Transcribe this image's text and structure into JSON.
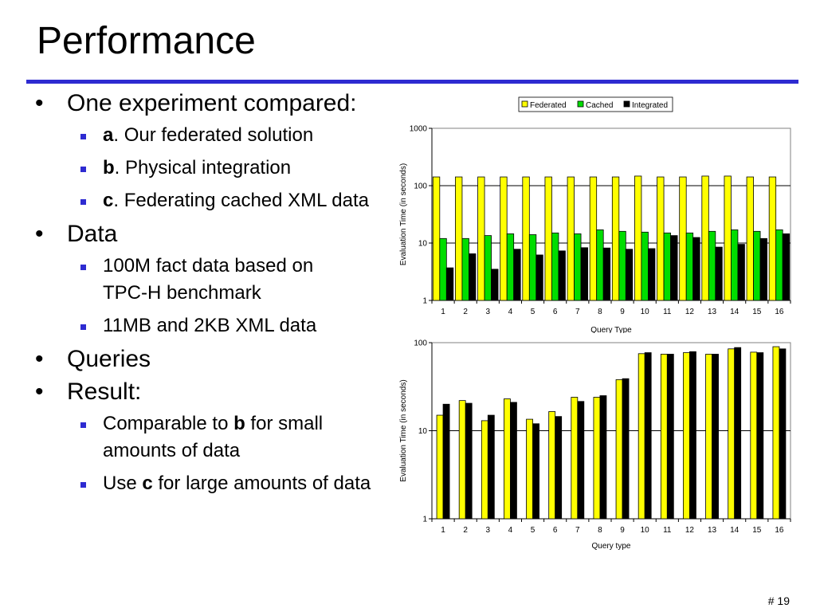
{
  "slide": {
    "title": "Performance",
    "number": "# 19"
  },
  "bullets": {
    "experiment": "One experiment compared:",
    "a_label": "a",
    "a_text": ". Our federated solution",
    "b_label": "b",
    "b_text": ". Physical integration",
    "c_label": "c",
    "c_text": ". Federating cached XML data",
    "data": "Data",
    "data_1": "100M fact data based on TPC-H benchmark",
    "data_2": "11MB and 2KB XML data",
    "queries": "Queries",
    "result": "Result:",
    "result_1_pre": "Comparable to ",
    "result_1_bold": "b",
    "result_1_post": " for small amounts of data",
    "result_2_pre": "Use ",
    "result_2_bold": "c",
    "result_2_post": " for large amounts of data"
  },
  "colors": {
    "accent": "#2e2bd1",
    "federated": "#ffff00",
    "cached": "#00dd00",
    "integrated": "#000000"
  },
  "chart_data": [
    {
      "type": "bar",
      "scale": "log",
      "ylim": [
        1,
        1000
      ],
      "yticks": [
        "1",
        "10",
        "100",
        "1000"
      ],
      "ylabel": "Evaluation Time (in seconds)",
      "xlabel": "Query Type",
      "categories": [
        "1",
        "2",
        "3",
        "4",
        "5",
        "6",
        "7",
        "8",
        "9",
        "10",
        "11",
        "12",
        "13",
        "14",
        "15",
        "16"
      ],
      "legend": "top",
      "grid": true,
      "series": [
        {
          "name": "Federated",
          "color": "#ffff00",
          "values": [
            142,
            142,
            142,
            142,
            142,
            142,
            142,
            142,
            142,
            147,
            142,
            142,
            147,
            147,
            142,
            142
          ]
        },
        {
          "name": "Cached",
          "color": "#00dd00",
          "values": [
            12,
            12,
            13.5,
            14.5,
            14,
            15,
            14.5,
            17,
            16,
            15.5,
            15,
            15,
            16,
            17,
            16,
            17
          ]
        },
        {
          "name": "Integrated",
          "color": "#000000",
          "values": [
            3.7,
            6.5,
            3.5,
            7.8,
            6.2,
            7.3,
            8.3,
            8.2,
            7.8,
            8,
            13.5,
            12.5,
            8.5,
            9.5,
            12,
            14.5
          ]
        }
      ]
    },
    {
      "type": "bar",
      "scale": "log",
      "ylim": [
        1,
        100
      ],
      "yticks": [
        "1",
        "10",
        "100"
      ],
      "ylabel": "Evaluation Time (in seconds)",
      "xlabel": "Query type",
      "categories": [
        "1",
        "2",
        "3",
        "4",
        "5",
        "6",
        "7",
        "8",
        "9",
        "10",
        "11",
        "12",
        "13",
        "14",
        "15",
        "16"
      ],
      "grid": true,
      "series": [
        {
          "color": "#ffff00",
          "values": [
            15,
            22,
            13,
            23,
            13.5,
            16.5,
            24,
            24,
            38,
            75,
            74,
            77,
            74,
            85,
            78,
            90
          ]
        },
        {
          "color": "#000000",
          "values": [
            20,
            20.5,
            15,
            21,
            12,
            14.5,
            21.5,
            25,
            39,
            77,
            74,
            79,
            74,
            88,
            77,
            85
          ]
        }
      ]
    }
  ]
}
